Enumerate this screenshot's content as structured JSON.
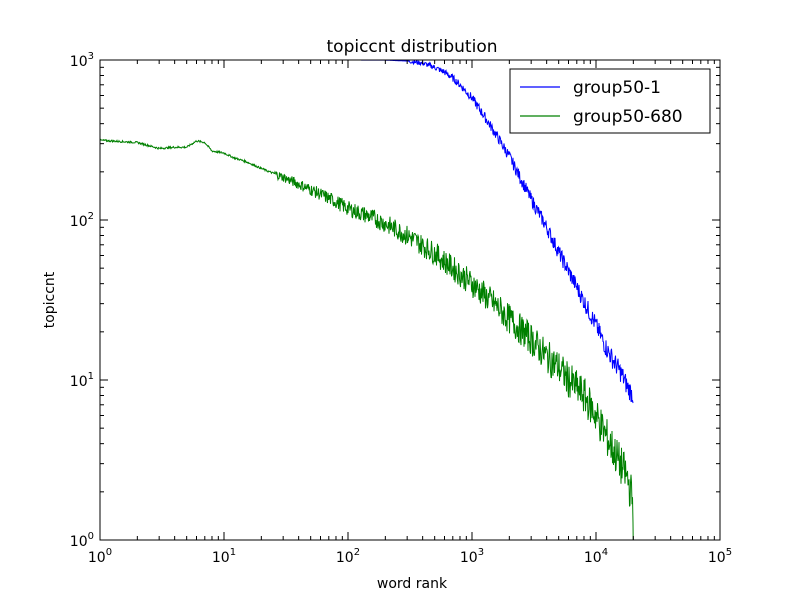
{
  "chart_data": {
    "type": "line",
    "title": "topiccnt distribution",
    "xlabel": "word rank",
    "ylabel": "topiccnt",
    "xscale": "log",
    "yscale": "log",
    "xlim": [
      1,
      100000
    ],
    "ylim": [
      1,
      1000
    ],
    "x_ticks": [
      {
        "value": 1,
        "mantissa": "10",
        "exp": "0"
      },
      {
        "value": 10,
        "mantissa": "10",
        "exp": "1"
      },
      {
        "value": 100,
        "mantissa": "10",
        "exp": "2"
      },
      {
        "value": 1000,
        "mantissa": "10",
        "exp": "3"
      },
      {
        "value": 10000,
        "mantissa": "10",
        "exp": "4"
      },
      {
        "value": 100000,
        "mantissa": "10",
        "exp": "5"
      }
    ],
    "y_ticks": [
      {
        "value": 1,
        "mantissa": "10",
        "exp": "0"
      },
      {
        "value": 10,
        "mantissa": "10",
        "exp": "1"
      },
      {
        "value": 100,
        "mantissa": "10",
        "exp": "2"
      },
      {
        "value": 1000,
        "mantissa": "10",
        "exp": "3"
      }
    ],
    "grid": false,
    "legend_position": "top-right",
    "series": [
      {
        "name": "group50-1",
        "color": "#0000ff",
        "points": [
          [
            1,
            1000
          ],
          [
            10,
            1000
          ],
          [
            100,
            1000
          ],
          [
            200,
            998
          ],
          [
            300,
            985
          ],
          [
            400,
            955
          ],
          [
            500,
            900
          ],
          [
            600,
            840
          ],
          [
            700,
            770
          ],
          [
            800,
            700
          ],
          [
            1000,
            580
          ],
          [
            1200,
            470
          ],
          [
            1500,
            360
          ],
          [
            2000,
            250
          ],
          [
            2500,
            178
          ],
          [
            3000,
            135
          ],
          [
            4000,
            90
          ],
          [
            5000,
            63
          ],
          [
            6000,
            48
          ],
          [
            7000,
            38
          ],
          [
            8000,
            31
          ],
          [
            10000,
            22
          ],
          [
            12000,
            16
          ],
          [
            14000,
            13
          ],
          [
            16000,
            11
          ],
          [
            18000,
            9
          ],
          [
            20000,
            8
          ]
        ]
      },
      {
        "name": "group50-680",
        "color": "#008000",
        "points": [
          [
            1,
            315
          ],
          [
            2,
            305
          ],
          [
            3,
            280
          ],
          [
            4,
            285
          ],
          [
            5,
            285
          ],
          [
            6,
            312
          ],
          [
            7,
            305
          ],
          [
            8,
            270
          ],
          [
            10,
            262
          ],
          [
            12,
            245
          ],
          [
            15,
            232
          ],
          [
            20,
            210
          ],
          [
            30,
            185
          ],
          [
            50,
            155
          ],
          [
            80,
            130
          ],
          [
            100,
            118
          ],
          [
            150,
            105
          ],
          [
            200,
            95
          ],
          [
            300,
            80
          ],
          [
            500,
            62
          ],
          [
            700,
            50
          ],
          [
            1000,
            40
          ],
          [
            1500,
            30
          ],
          [
            2000,
            24
          ],
          [
            3000,
            18
          ],
          [
            4000,
            14
          ],
          [
            5000,
            12
          ],
          [
            6000,
            10
          ],
          [
            8000,
            8
          ],
          [
            10000,
            6
          ],
          [
            12000,
            4.5
          ],
          [
            15000,
            3.2
          ],
          [
            18000,
            2.4
          ],
          [
            20000,
            1.7
          ]
        ]
      }
    ]
  }
}
